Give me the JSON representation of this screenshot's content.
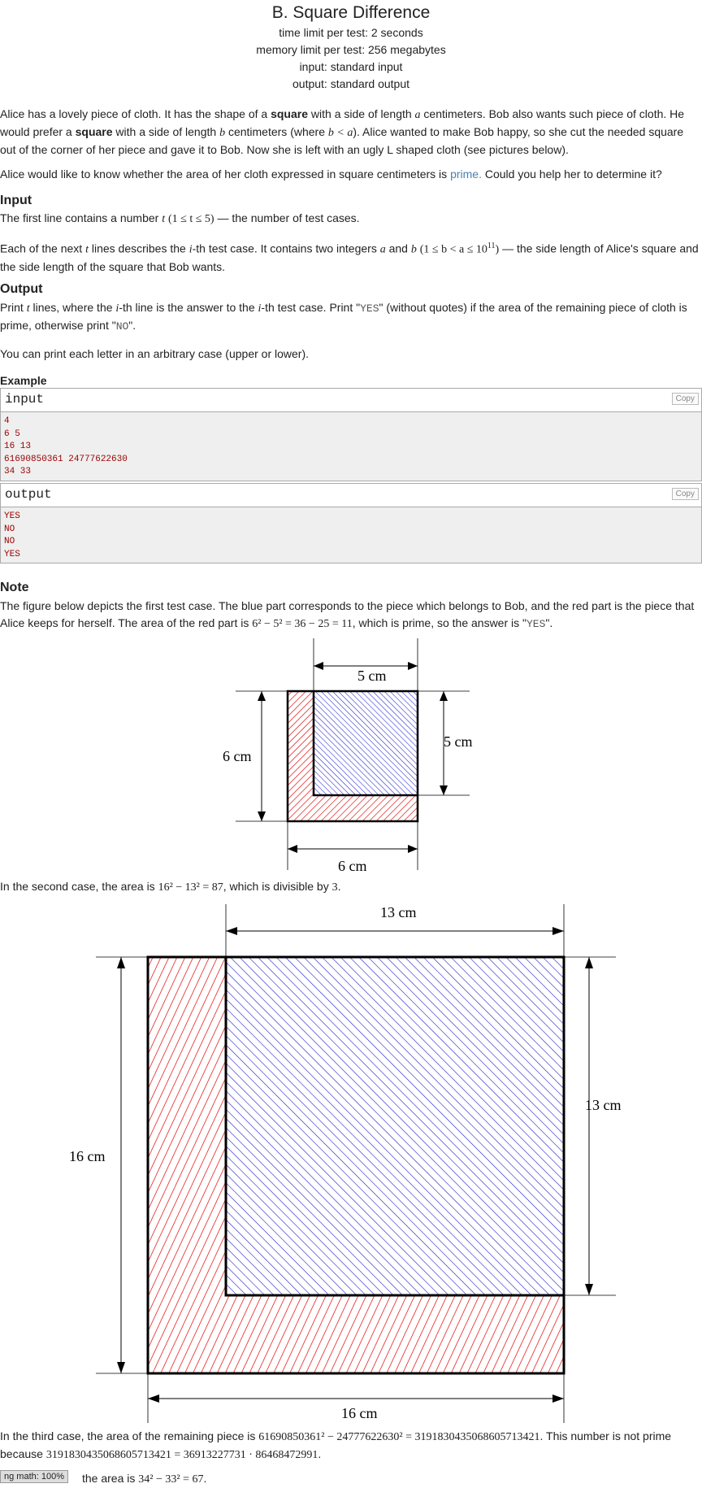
{
  "header": {
    "title": "B. Square Difference",
    "time_limit": "time limit per test: 2 seconds",
    "memory_limit": "memory limit per test: 256 megabytes",
    "input": "input: standard input",
    "output": "output: standard output"
  },
  "sections": {
    "input": "Input",
    "output": "Output",
    "example": "Example",
    "note": "Note"
  },
  "statement": {
    "p1a": "Alice has a lovely piece of cloth. It has the shape of a ",
    "p1b": "square",
    "p1c": " with a side of length ",
    "p1d": " centimeters. Bob also wants such piece of cloth. He would prefer a ",
    "p1e": "square",
    "p1f": " with a side of length ",
    "p1g": " centimeters (where ",
    "p1h": "). Alice wanted to make Bob happy, so she cut the needed square out of the corner of her piece and gave it to Bob. Now she is left with an ugly L shaped cloth (see pictures below).",
    "p2a": "Alice would like to know whether the area of her cloth expressed in square centimeters is ",
    "p2link": "prime.",
    "p2b": " Could you help her to determine it?"
  },
  "input_text": {
    "l1a": "The first line contains a number ",
    "l1b": " — the number of test cases.",
    "l2a": "Each of the next ",
    "l2b": " lines describes the ",
    "l2c": "-th test case. It contains two integers ",
    "l2d": " and ",
    "l2e": " — the side length of Alice's square and the side length of the square that Bob wants."
  },
  "output_text": {
    "l1a": "Print ",
    "l1b": " lines, where the ",
    "l1c": "-th line is the answer to the ",
    "l1d": "-th test case. Print \"",
    "yes": "YES",
    "l1e": "\" (without quotes) if the area of the remaining piece of cloth is prime, otherwise print \"",
    "no": "NO",
    "l1f": "\".",
    "l2": "You can print each letter in an arbitrary case (upper or lower)."
  },
  "example": {
    "input_label": "input",
    "output_label": "output",
    "copy": "Copy",
    "input_lines": [
      "4",
      "6 5",
      "16 13",
      "61690850361 24777622630",
      "34 33"
    ],
    "output_lines": [
      "YES",
      "NO",
      "NO",
      "YES"
    ]
  },
  "math": {
    "a": "a",
    "b": "b",
    "t": "t",
    "i": "i",
    "b_lt_a": "b < a",
    "t_range": "(1 ≤ t ≤ 5)",
    "ab_range_pre": "(1 ≤ b < a ≤ 10",
    "ab_exp": "11",
    "ab_range_post": ")"
  },
  "note": {
    "n1a": "The figure below depicts the first test case. The blue part corresponds to the piece which belongs to Bob, and the red part is the piece that Alice keeps for herself. The area of the red part is ",
    "n1math": "6² − 5² = 36 − 25 = 11",
    "n1b": ", which is prime, so the answer is \"",
    "n1yes": "YES",
    "n1c": "\".",
    "n2a": "In the second case, the area is ",
    "n2math": "16² − 13² = 87",
    "n2b": ", which is divisible by ",
    "n2three": "3",
    "n2c": ".",
    "n3a": "In the third case, the area of the remaining piece is ",
    "n3math": "61690850361² − 24777622630² = 3191830435068605713421",
    "n3b": ". This number is not prime because ",
    "n3math2": "3191830435068605713421 = 36913227731 · 86468472991",
    "n3c": ".",
    "n4a": "the area is ",
    "n4math": "34² − 33² = 67",
    "n4b": "."
  },
  "figures": {
    "fig1": {
      "top_label": "5 cm",
      "right_label": "5 cm",
      "left_label": "6 cm",
      "bottom_label": "6 cm"
    },
    "fig2": {
      "top_label": "13 cm",
      "right_label": "13 cm",
      "left_label": "16 cm",
      "bottom_label": "16 cm"
    }
  },
  "zoom_badge": "ng math: 100%",
  "colors": {
    "red": "#e00000",
    "blue": "#2020d0",
    "link": "#4a7fb5",
    "sample_text": "#990000"
  }
}
